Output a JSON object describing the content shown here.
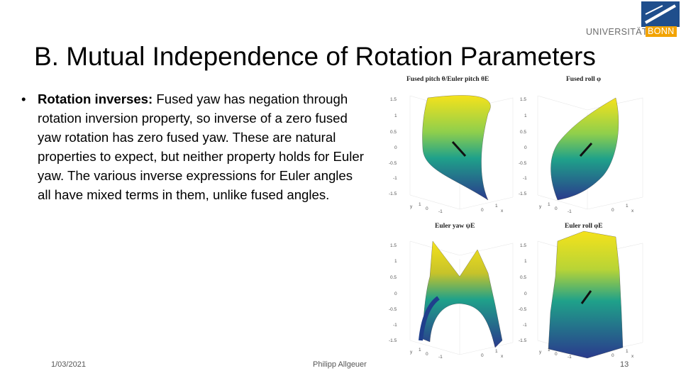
{
  "logo": {
    "part1": "UNIVERSITÄT",
    "part2": "BONN"
  },
  "title": "B.  Mutual Independence of Rotation Parameters",
  "bullet": {
    "lead": "Rotation inverses:",
    "text": " Fused yaw has negation through rotation inversion property, so inverse of a zero fused yaw rotation has zero fused yaw. These are natural properties to expect, but neither property holds for Euler yaw. The various inverse expressions for Euler angles all have mixed terms in them, unlike fused angles."
  },
  "plots": [
    {
      "title": "Fused pitch θ/Euler pitch θE",
      "yticks": [
        "1.5",
        "1",
        "0.5",
        "0",
        "-0.5",
        "-1",
        "-1.5"
      ],
      "xticks": [
        "1",
        "0",
        "-1",
        "0",
        "1"
      ],
      "xaxis": [
        "y",
        "x"
      ]
    },
    {
      "title": "Fused roll φ",
      "yticks": [
        "1.5",
        "1",
        "0.5",
        "0",
        "-0.5",
        "-1",
        "-1.5"
      ],
      "xticks": [
        "1",
        "0",
        "-1",
        "0",
        "1"
      ],
      "xaxis": [
        "y",
        "x"
      ]
    },
    {
      "title": "Euler yaw ψE",
      "yticks": [
        "1.5",
        "1",
        "0.5",
        "0",
        "-0.5",
        "-1",
        "-1.5"
      ],
      "xticks": [
        "1",
        "0",
        "-1",
        "0",
        "1"
      ],
      "xaxis": [
        "y",
        "x"
      ]
    },
    {
      "title": "Euler roll φE",
      "yticks": [
        "1.5",
        "1",
        "0.5",
        "0",
        "-0.5",
        "-1",
        "-1.5"
      ],
      "xticks": [
        "1",
        "0",
        "-1",
        "0",
        "1"
      ],
      "xaxis": [
        "y",
        "x"
      ]
    }
  ],
  "footer": {
    "date": "1/03/2021",
    "author": "Philipp Allgeuer",
    "page": "13"
  },
  "colors": {
    "logo_blue": "#1f4e8c",
    "logo_orange": "#f2a300",
    "surface_low": "#2a3a8c",
    "surface_mid": "#1fa18a",
    "surface_high": "#f5e21b"
  }
}
